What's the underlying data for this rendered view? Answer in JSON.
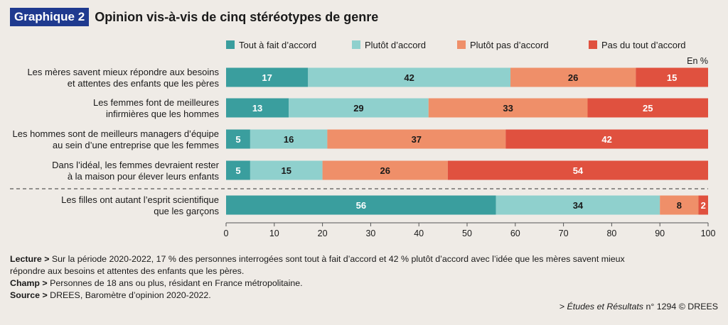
{
  "header": {
    "badge": "Graphique 2",
    "title": "Opinion vis-à-vis de cinq stéréotypes de genre"
  },
  "chart_data": {
    "type": "bar",
    "orientation": "horizontal",
    "stacked": true,
    "unit_label": "En %",
    "xlim": [
      0,
      100
    ],
    "x_ticks": [
      0,
      10,
      20,
      30,
      40,
      50,
      60,
      70,
      80,
      90,
      100
    ],
    "legend_position": "top",
    "categories": [
      [
        "Les mères savent mieux répondre aux besoins",
        "et attentes des enfants que les pères"
      ],
      [
        "Les femmes font de meilleures",
        "infirmières que les hommes"
      ],
      [
        "Les hommes sont de meilleurs managers d’équipe",
        "au sein d’une entreprise que les femmes"
      ],
      [
        "Dans l’idéal, les femmes devraient rester",
        "à la maison pour élever leurs enfants"
      ],
      [
        "Les filles ont autant l’esprit scientifique",
        "que les garçons"
      ]
    ],
    "separator_before_index": 4,
    "series": [
      {
        "name": "Tout à fait d’accord",
        "color": "#3a9e9e",
        "label_color": "#ffffff",
        "values": [
          17,
          13,
          5,
          5,
          56
        ]
      },
      {
        "name": "Plutôt d’accord",
        "color": "#8fd0cd",
        "label_color": "#1a1a1a",
        "values": [
          42,
          29,
          16,
          15,
          34
        ]
      },
      {
        "name": "Plutôt pas d’accord",
        "color": "#ef8f69",
        "label_color": "#1a1a1a",
        "values": [
          26,
          33,
          37,
          26,
          8
        ]
      },
      {
        "name": "Pas du tout d’accord",
        "color": "#e0513f",
        "label_color": "#ffffff",
        "values": [
          15,
          25,
          42,
          54,
          2
        ]
      }
    ]
  },
  "notes": {
    "lecture_label": "Lecture >",
    "lecture_text_1": " Sur la période 2020-2022, 17 % des personnes interrogées sont tout à fait d’accord et 42 % plutôt d’accord avec l’idée que les mères savent mieux",
    "lecture_text_2": "répondre aux besoins et attentes des enfants que les pères.",
    "champ_label": "Champ >",
    "champ_text": " Personnes de 18 ans ou plus, résidant en France métropolitaine.",
    "source_label": "Source >",
    "source_text": " DREES, Baromètre d’opinion 2020-2022."
  },
  "credit": {
    "prefix": "> ",
    "publication": "Études et Résultats",
    "suffix": " n° 1294 © DREES"
  }
}
